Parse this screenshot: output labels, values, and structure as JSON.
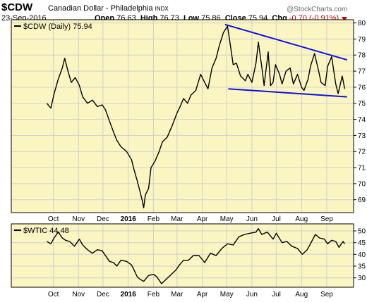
{
  "header": {
    "symbol": "$CDW",
    "name": "Canadian Dollar - Philadelphia",
    "exchange": "INDX",
    "date": "23-Sep-2016",
    "open_label": "Open",
    "open": "76.63",
    "high_label": "High",
    "high": "76.73",
    "low_label": "Low",
    "low": "75.86",
    "close_label": "Close",
    "close": "75.94",
    "chg_label": "Chg",
    "chg": "-0.70 (-0.91%)",
    "watermark": "@StockCharts.com",
    "down_color": "#c00000"
  },
  "chart_data": [
    {
      "type": "line",
      "legend": "$CDW (Daily) 75.94",
      "ylim": [
        68.2,
        80.2
      ],
      "yticks": [
        "69",
        "70",
        "71",
        "72",
        "73",
        "74",
        "75",
        "76",
        "77",
        "78",
        "79",
        "80"
      ],
      "xticks": [
        "Oct",
        "Nov",
        "Dec",
        "2016",
        "Feb",
        "Mar",
        "Apr",
        "May",
        "Jun",
        "Jul",
        "Aug",
        "Sep"
      ],
      "bold_ticks": [
        "2016"
      ],
      "background": "#fbf6c1",
      "trendline_color": "#1010e0",
      "x": [
        "2015-09-23",
        "2015-09-28",
        "2015-10-02",
        "2015-10-07",
        "2015-10-12",
        "2015-10-15",
        "2015-10-19",
        "2015-10-23",
        "2015-10-28",
        "2015-11-02",
        "2015-11-06",
        "2015-11-12",
        "2015-11-18",
        "2015-11-24",
        "2015-11-30",
        "2015-12-04",
        "2015-12-09",
        "2015-12-14",
        "2015-12-18",
        "2015-12-23",
        "2015-12-30",
        "2016-01-05",
        "2016-01-08",
        "2016-01-12",
        "2016-01-15",
        "2016-01-18",
        "2016-01-20",
        "2016-01-22",
        "2016-01-26",
        "2016-01-29",
        "2016-02-03",
        "2016-02-08",
        "2016-02-12",
        "2016-02-18",
        "2016-02-24",
        "2016-03-01",
        "2016-03-04",
        "2016-03-09",
        "2016-03-14",
        "2016-03-18",
        "2016-03-24",
        "2016-03-30",
        "2016-04-04",
        "2016-04-08",
        "2016-04-13",
        "2016-04-18",
        "2016-04-22",
        "2016-04-27",
        "2016-05-02",
        "2016-05-05",
        "2016-05-09",
        "2016-05-13",
        "2016-05-18",
        "2016-05-24",
        "2016-05-27",
        "2016-06-01",
        "2016-06-06",
        "2016-06-09",
        "2016-06-13",
        "2016-06-16",
        "2016-06-21",
        "2016-06-24",
        "2016-06-27",
        "2016-06-30",
        "2016-07-05",
        "2016-07-08",
        "2016-07-13",
        "2016-07-18",
        "2016-07-22",
        "2016-07-27",
        "2016-08-01",
        "2016-08-04",
        "2016-08-09",
        "2016-08-12",
        "2016-08-17",
        "2016-08-22",
        "2016-08-25",
        "2016-08-30",
        "2016-09-02",
        "2016-09-07",
        "2016-09-12",
        "2016-09-15",
        "2016-09-20",
        "2016-09-23"
      ],
      "values": [
        75.0,
        74.7,
        75.6,
        76.5,
        77.2,
        77.8,
        77.0,
        76.3,
        76.6,
        76.1,
        75.4,
        75.0,
        75.2,
        74.8,
        74.9,
        74.6,
        73.9,
        73.2,
        72.7,
        72.3,
        72.0,
        71.5,
        70.9,
        70.2,
        69.6,
        69.0,
        68.5,
        69.3,
        69.7,
        71.0,
        71.4,
        72.0,
        72.6,
        72.9,
        73.6,
        74.4,
        74.7,
        75.3,
        75.0,
        75.5,
        75.8,
        76.8,
        76.3,
        75.9,
        77.2,
        77.8,
        78.6,
        79.4,
        79.8,
        78.8,
        77.4,
        77.5,
        76.7,
        76.4,
        76.8,
        76.3,
        77.5,
        78.8,
        77.3,
        76.1,
        78.2,
        76.1,
        76.3,
        77.4,
        76.8,
        76.2,
        77.0,
        77.2,
        76.2,
        76.8,
        76.0,
        75.8,
        76.5,
        77.3,
        78.1,
        77.0,
        76.3,
        76.1,
        77.3,
        77.9,
        76.2,
        75.6,
        76.7,
        75.9
      ],
      "trendlines": [
        {
          "x": [
            "2016-04-29",
            "2016-09-26"
          ],
          "values": [
            79.9,
            77.7
          ]
        },
        {
          "x": [
            "2016-05-03",
            "2016-09-26"
          ],
          "values": [
            75.9,
            75.4
          ]
        }
      ]
    },
    {
      "type": "line",
      "legend": "$WTIC 44.48",
      "ylim": [
        26,
        53
      ],
      "yticks": [
        "30",
        "35",
        "40",
        "45",
        "50"
      ],
      "xticks": [
        "Oct",
        "Nov",
        "Dec",
        "2016",
        "Feb",
        "Mar",
        "Apr",
        "May",
        "Jun",
        "Jul",
        "Aug",
        "Sep"
      ],
      "bold_ticks": [
        "2016"
      ],
      "background": "#fbf6c1",
      "x": [
        "2015-09-23",
        "2015-09-28",
        "2015-10-02",
        "2015-10-07",
        "2015-10-12",
        "2015-10-16",
        "2015-10-21",
        "2015-10-27",
        "2015-11-02",
        "2015-11-06",
        "2015-11-12",
        "2015-11-18",
        "2015-11-24",
        "2015-11-30",
        "2015-12-04",
        "2015-12-09",
        "2015-12-14",
        "2015-12-18",
        "2015-12-23",
        "2015-12-30",
        "2016-01-05",
        "2016-01-08",
        "2016-01-12",
        "2016-01-15",
        "2016-01-20",
        "2016-01-26",
        "2016-02-01",
        "2016-02-05",
        "2016-02-11",
        "2016-02-17",
        "2016-02-23",
        "2016-02-29",
        "2016-03-04",
        "2016-03-09",
        "2016-03-15",
        "2016-03-21",
        "2016-03-28",
        "2016-04-04",
        "2016-04-11",
        "2016-04-18",
        "2016-04-25",
        "2016-05-02",
        "2016-05-09",
        "2016-05-16",
        "2016-05-23",
        "2016-05-30",
        "2016-06-06",
        "2016-06-09",
        "2016-06-13",
        "2016-06-20",
        "2016-06-27",
        "2016-07-01",
        "2016-07-08",
        "2016-07-14",
        "2016-07-20",
        "2016-07-27",
        "2016-08-02",
        "2016-08-08",
        "2016-08-12",
        "2016-08-18",
        "2016-08-23",
        "2016-08-29",
        "2016-09-02",
        "2016-09-07",
        "2016-09-12",
        "2016-09-16",
        "2016-09-21",
        "2016-09-23"
      ],
      "values": [
        45.5,
        44.5,
        47.0,
        49.5,
        47.0,
        46.0,
        45.5,
        43.5,
        46.5,
        44.0,
        42.0,
        40.5,
        42.0,
        41.5,
        39.5,
        37.0,
        36.5,
        35.0,
        37.5,
        37.0,
        35.5,
        33.5,
        30.5,
        29.5,
        28.5,
        31.0,
        31.5,
        30.5,
        27.5,
        29.5,
        31.5,
        33.5,
        35.5,
        37.5,
        37.5,
        39.5,
        39.5,
        36.5,
        40.5,
        39.5,
        42.5,
        44.5,
        44.0,
        47.5,
        48.5,
        49.0,
        49.5,
        51.0,
        48.5,
        49.5,
        46.5,
        49.0,
        45.0,
        45.5,
        43.5,
        42.5,
        40.0,
        42.0,
        44.5,
        48.5,
        47.0,
        46.5,
        44.5,
        46.0,
        45.5,
        43.0,
        45.5,
        44.5
      ]
    }
  ]
}
